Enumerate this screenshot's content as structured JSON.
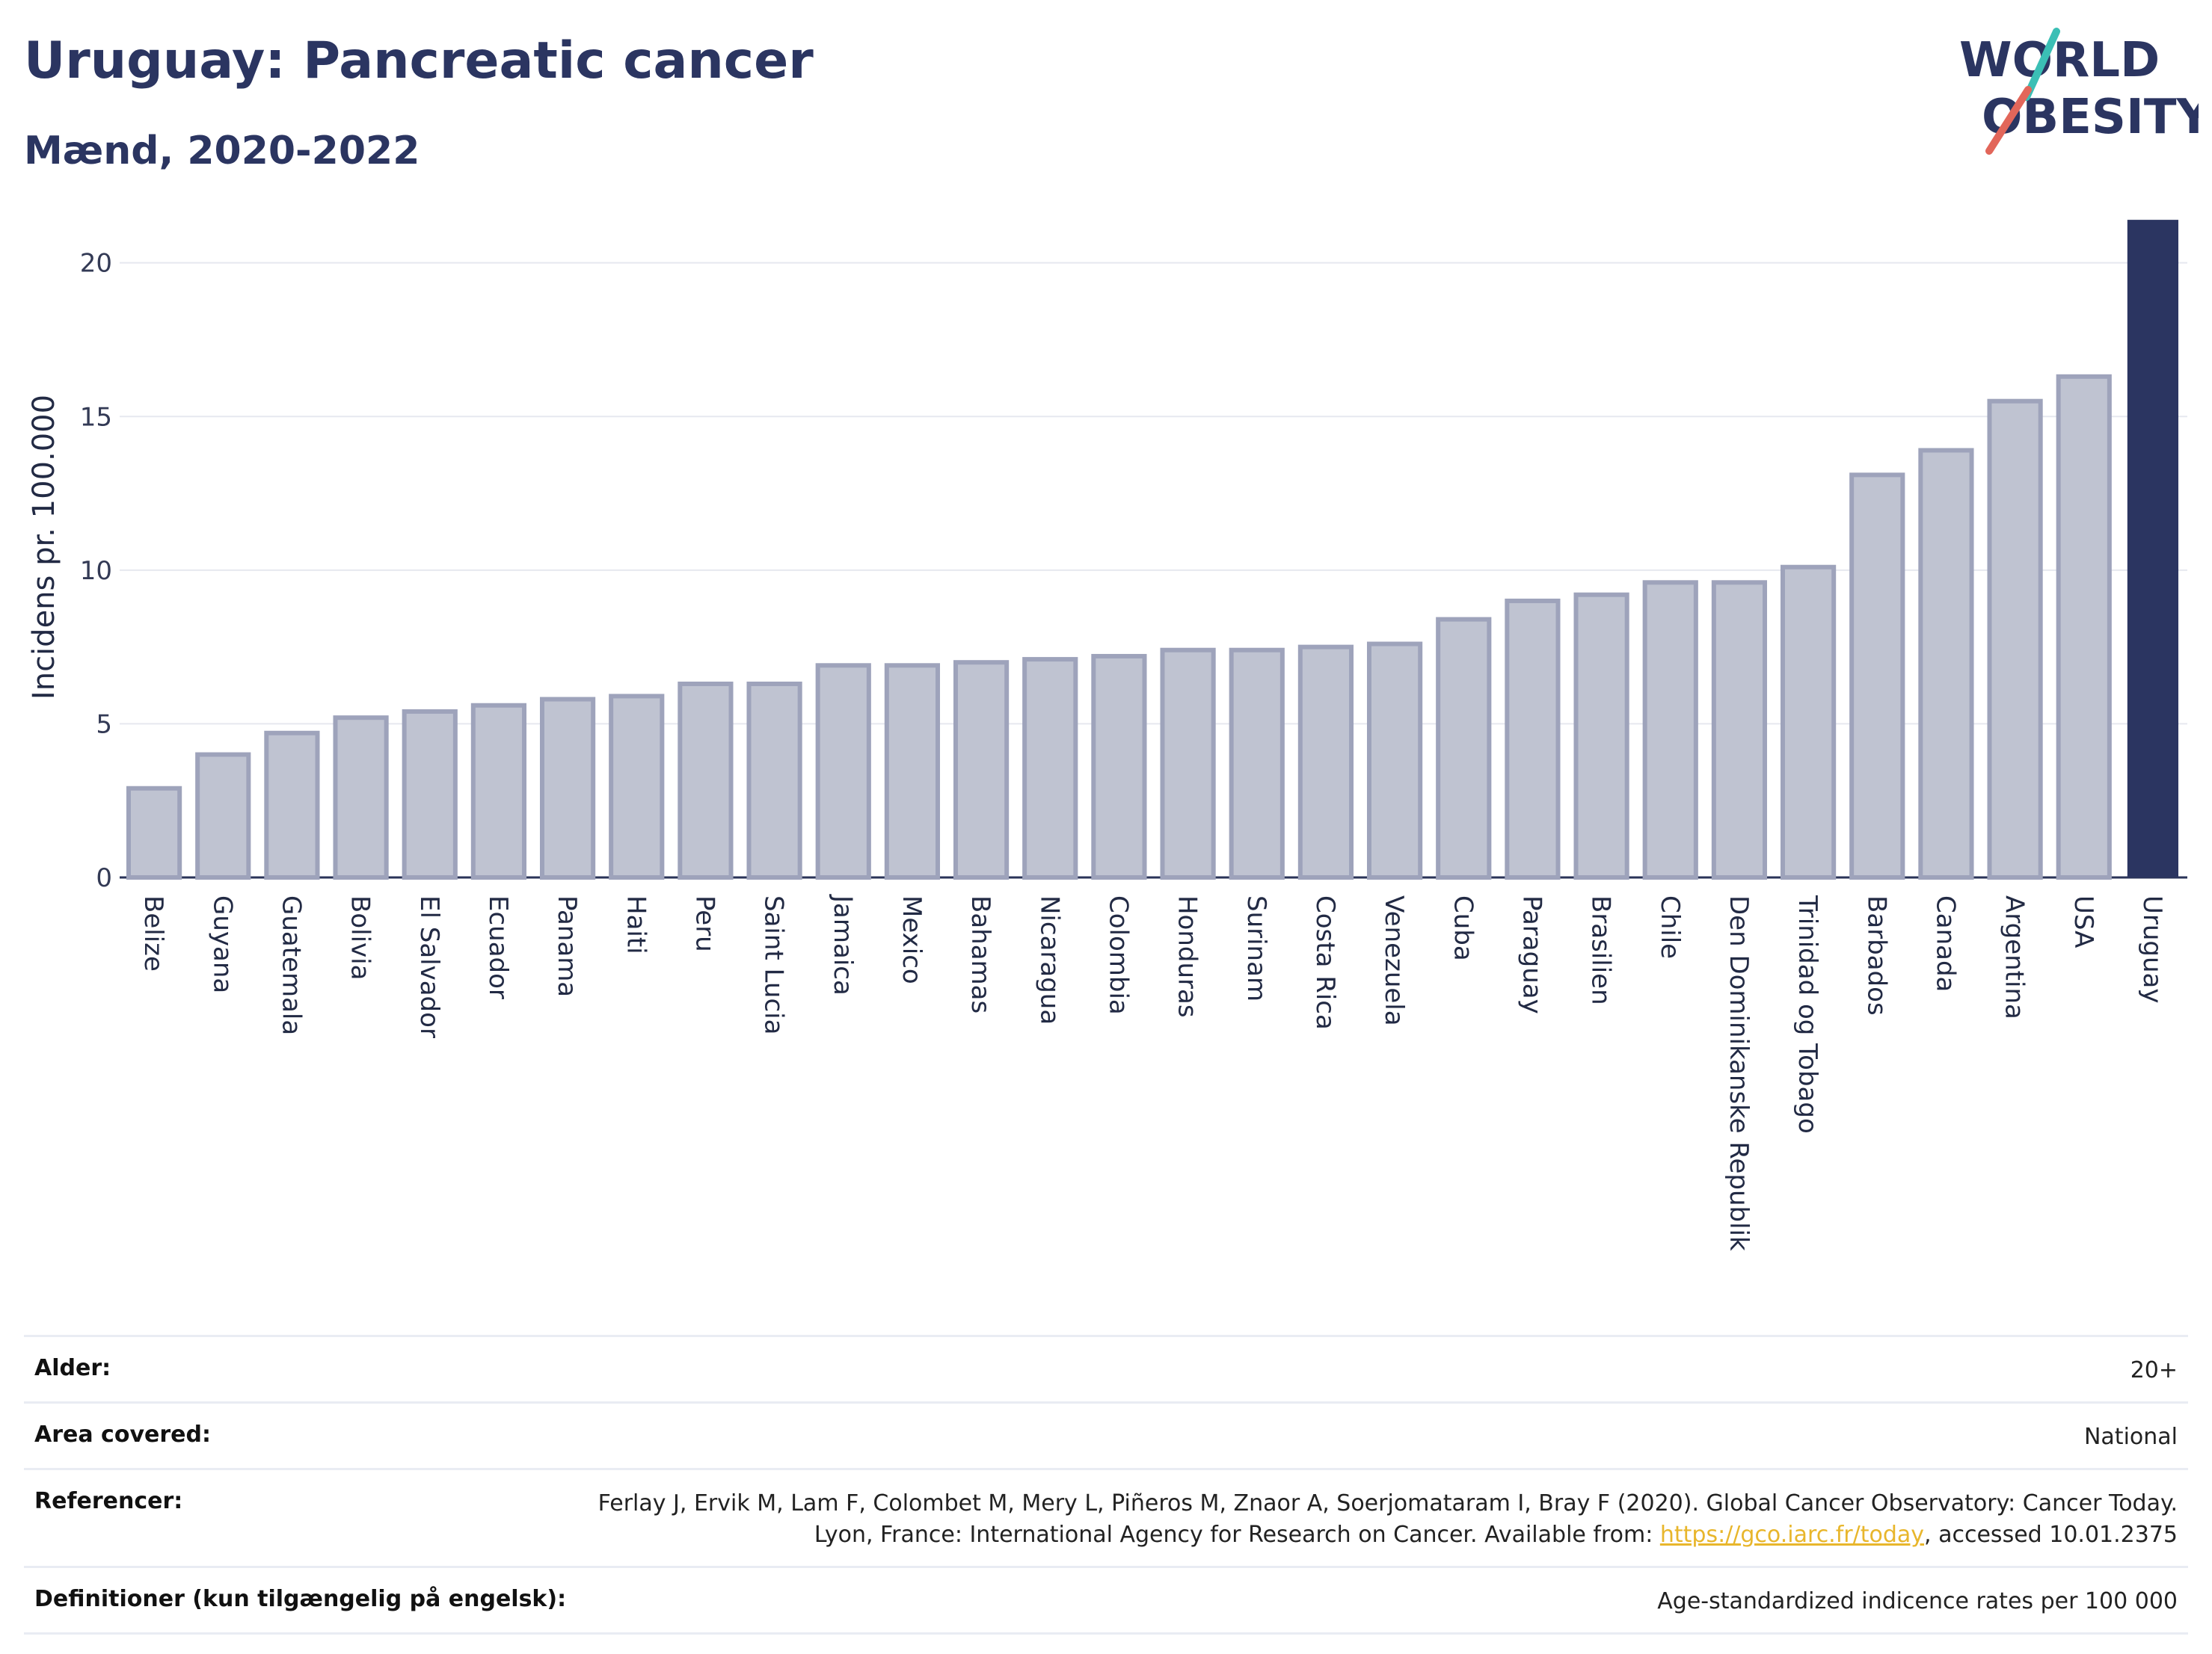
{
  "header": {
    "title": "Uruguay: Pancreatic cancer",
    "subtitle": "Mænd, 2020-2022"
  },
  "logo": {
    "line1": "WORLD",
    "line2": "OBESITY",
    "colors": {
      "text": "#2b3561",
      "slash_red": "#e2665a",
      "slash_teal": "#3bbfb5"
    }
  },
  "colors": {
    "bar_default": "#bfc3d1",
    "bar_default_stroke": "#9ea3bb",
    "bar_highlight": "#2b3561",
    "grid": "#e6e8ef",
    "axis": "#2a3358"
  },
  "chart_data": {
    "type": "bar",
    "ylabel": "Incidens pr. 100.000",
    "ylim": [
      0,
      21.5
    ],
    "yticks": [
      0,
      5,
      10,
      15,
      20
    ],
    "grid": true,
    "highlight": "Uruguay",
    "categories": [
      "Belize",
      "Guyana",
      "Guatemala",
      "Bolivia",
      "El Salvador",
      "Ecuador",
      "Panama",
      "Haiti",
      "Peru",
      "Saint Lucia",
      "Jamaica",
      "Mexico",
      "Bahamas",
      "Nicaragua",
      "Colombia",
      "Honduras",
      "Surinam",
      "Costa Rica",
      "Venezuela",
      "Cuba",
      "Paraguay",
      "Brasilien",
      "Chile",
      "Den Dominikanske Republik",
      "Trinidad og Tobago",
      "Barbados",
      "Canada",
      "Argentina",
      "USA",
      "Uruguay"
    ],
    "values": [
      2.9,
      4.0,
      4.7,
      5.2,
      5.4,
      5.6,
      5.8,
      5.9,
      6.3,
      6.3,
      6.9,
      6.9,
      7.0,
      7.1,
      7.2,
      7.4,
      7.4,
      7.5,
      7.6,
      8.4,
      9.0,
      9.2,
      9.6,
      9.6,
      10.1,
      13.1,
      13.9,
      15.5,
      16.3,
      21.4
    ]
  },
  "meta": {
    "age_label": "Alder:",
    "age_value": "20+",
    "area_label": "Area covered:",
    "area_value": "National",
    "ref_label": "Referencer:",
    "ref_text_before": "Ferlay J, Ervik M, Lam F, Colombet M, Mery L, Piñeros M, Znaor A, Soerjomataram I, Bray F (2020). Global Cancer Observatory: Cancer Today. Lyon, France: International Agency for Research on Cancer. Available from: ",
    "ref_link": "https://gco.iarc.fr/today",
    "ref_text_after": ", accessed 10.01.2375",
    "def_label": "Definitioner (kun tilgængelig på engelsk):",
    "def_value": "Age-standardized indicence rates per 100 000"
  }
}
